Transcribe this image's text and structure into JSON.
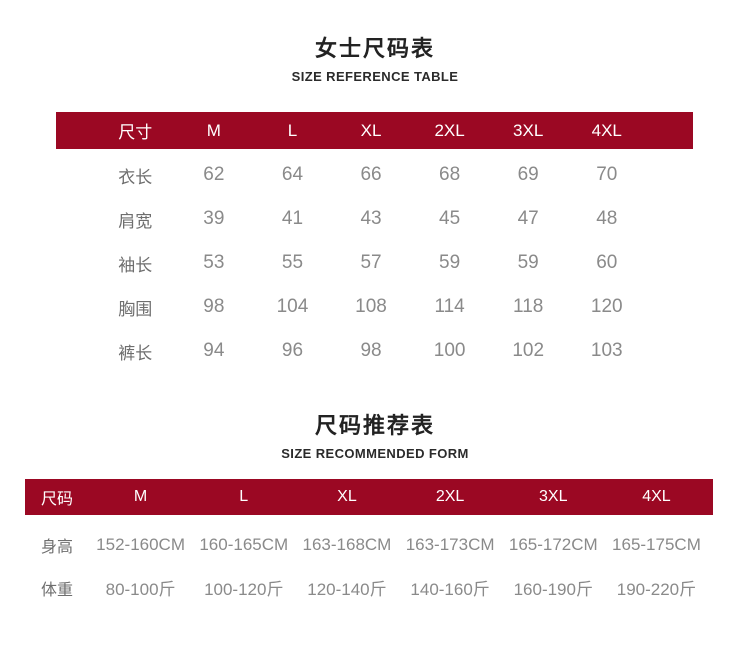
{
  "colors": {
    "accent": "#9b0823",
    "header_text": "#ffffff",
    "label_text": "#6e6e6e",
    "value_text": "#8a8a8a",
    "title_text": "#222222"
  },
  "chart_data": [
    {
      "type": "table",
      "title": "女士尺码表",
      "subtitle": "SIZE REFERENCE TABLE",
      "columns": [
        "尺寸",
        "M",
        "L",
        "XL",
        "2XL",
        "3XL",
        "4XL"
      ],
      "rows": [
        {
          "label": "衣长",
          "values": [
            "62",
            "64",
            "66",
            "68",
            "69",
            "70"
          ]
        },
        {
          "label": "肩宽",
          "values": [
            "39",
            "41",
            "43",
            "45",
            "47",
            "48"
          ]
        },
        {
          "label": "袖长",
          "values": [
            "53",
            "55",
            "57",
            "59",
            "59",
            "60"
          ]
        },
        {
          "label": "胸围",
          "values": [
            "98",
            "104",
            "108",
            "114",
            "118",
            "120"
          ]
        },
        {
          "label": "裤长",
          "values": [
            "94",
            "96",
            "98",
            "100",
            "102",
            "103"
          ]
        }
      ],
      "header_bg": "#9b0823",
      "layout": "header row dark-red with white text; body rows white with gray text; no gridlines"
    },
    {
      "type": "table",
      "title": "尺码推荐表",
      "subtitle": "SIZE RECOMMENDED FORM",
      "columns": [
        "尺码",
        "M",
        "L",
        "XL",
        "2XL",
        "3XL",
        "4XL"
      ],
      "rows": [
        {
          "label": "身高",
          "values": [
            "152-160CM",
            "160-165CM",
            "163-168CM",
            "163-173CM",
            "165-172CM",
            "165-175CM"
          ]
        },
        {
          "label": "体重",
          "values": [
            "80-100斤",
            "100-120斤",
            "120-140斤",
            "140-160斤",
            "160-190斤",
            "190-220斤"
          ]
        }
      ],
      "header_bg": "#9b0823",
      "layout": "header row dark-red with white text; body rows white with gray text; no gridlines"
    }
  ]
}
